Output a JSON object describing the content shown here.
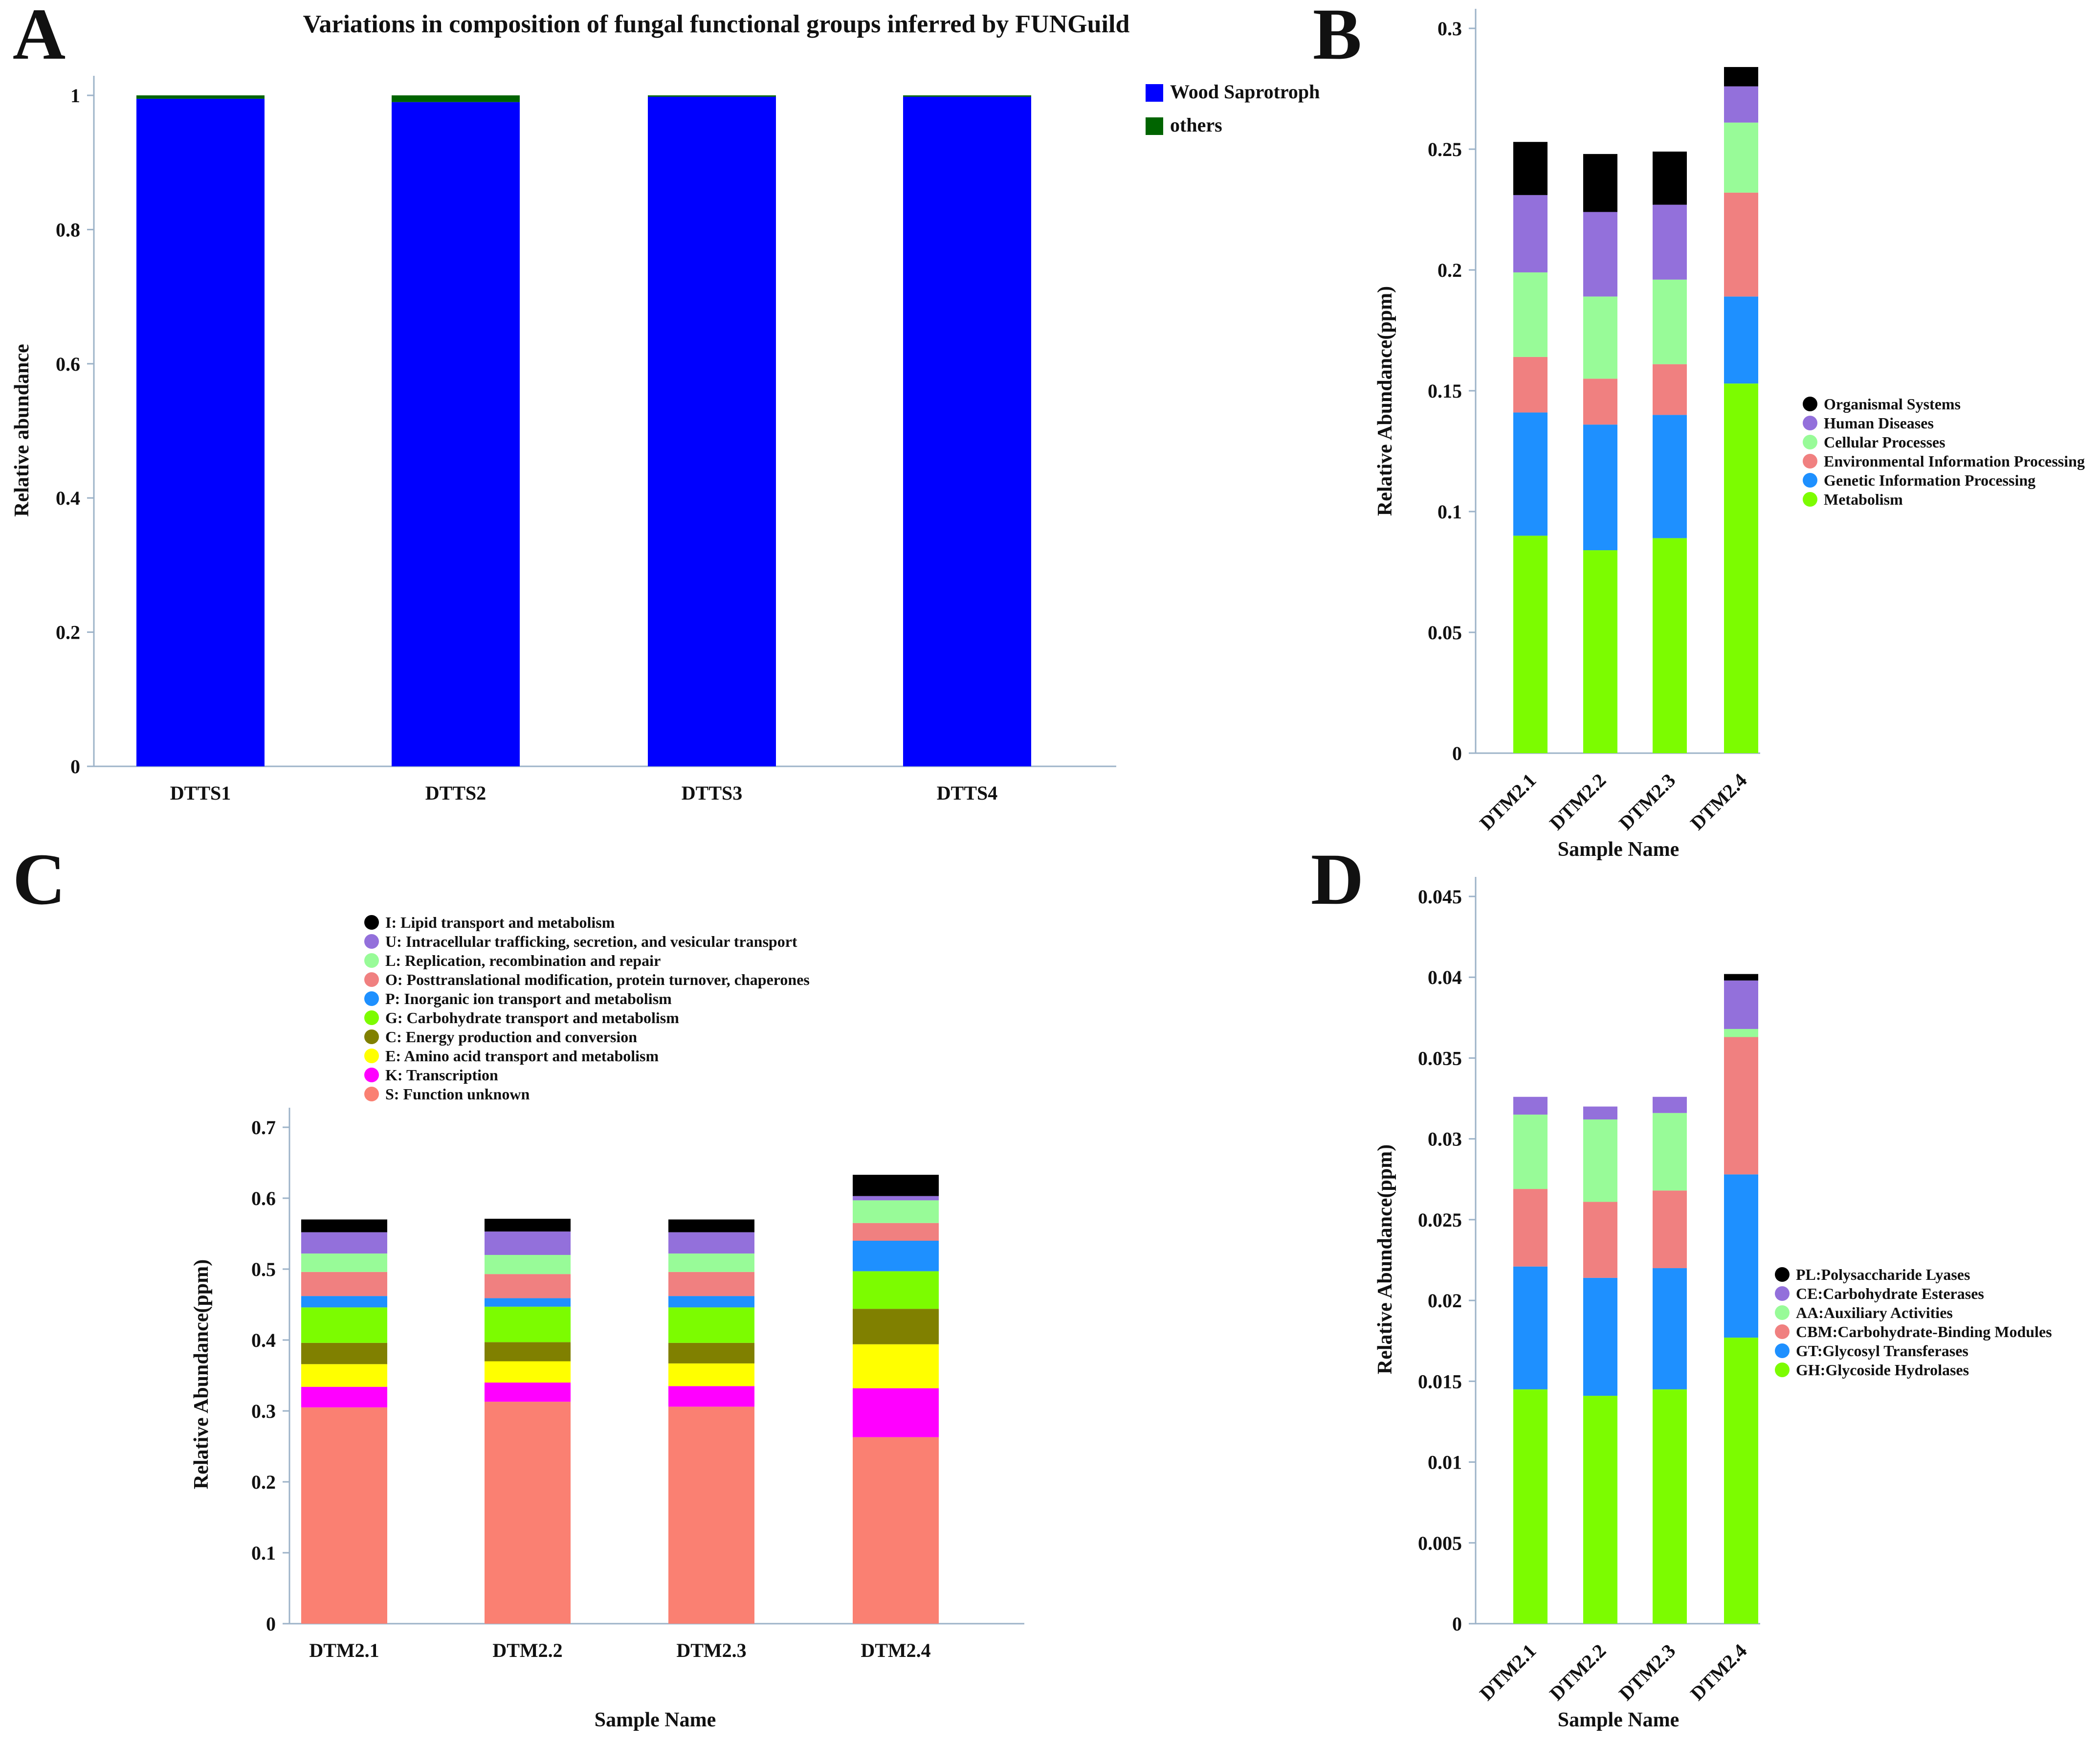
{
  "chart_data": [
    {
      "panel": "A",
      "type": "bar",
      "stacked": true,
      "title": "Variations in composition of fungal functional groups inferred by FUNGuild",
      "xlabel": "",
      "ylabel": "Relative abundance",
      "ylim": [
        0,
        1
      ],
      "yticks": [
        0,
        0.2,
        0.4,
        0.6,
        0.8,
        1
      ],
      "ytick_labels": [
        "0",
        "0.2",
        "0.4",
        "0.6",
        "0.8",
        "1"
      ],
      "categories": [
        "DTTS1",
        "DTTS2",
        "DTTS3",
        "DTTS4"
      ],
      "series": [
        {
          "name": "Wood Saprotroph",
          "color": "#0000ff",
          "values": [
            0.995,
            0.99,
            0.998,
            0.998
          ]
        },
        {
          "name": "others",
          "color": "#006400",
          "values": [
            0.005,
            0.01,
            0.002,
            0.002
          ]
        }
      ],
      "legend_position": "right"
    },
    {
      "panel": "B",
      "type": "bar",
      "stacked": true,
      "title": "",
      "xlabel": "Sample Name",
      "ylabel": "Relative Abundance(ppm)",
      "ylim": [
        0,
        0.3
      ],
      "yticks": [
        0,
        0.05,
        0.1,
        0.15,
        0.2,
        0.25,
        0.3
      ],
      "ytick_labels": [
        "0",
        "0.05",
        "0.1",
        "0.15",
        "0.2",
        "0.25",
        "0.3"
      ],
      "categories": [
        "DTM2.1",
        "DTM2.2",
        "DTM2.3",
        "DTM2.4"
      ],
      "series": [
        {
          "name": "Metabolism",
          "color": "#7cfc00",
          "values": [
            0.09,
            0.084,
            0.089,
            0.153
          ]
        },
        {
          "name": "Genetic Information Processing",
          "color": "#1e90ff",
          "values": [
            0.051,
            0.052,
            0.051,
            0.036
          ]
        },
        {
          "name": "Environmental Information Processing",
          "color": "#f08080",
          "values": [
            0.023,
            0.019,
            0.021,
            0.043
          ]
        },
        {
          "name": "Cellular Processes",
          "color": "#98fb98",
          "values": [
            0.035,
            0.034,
            0.035,
            0.029
          ]
        },
        {
          "name": "Human Diseases",
          "color": "#9370db",
          "values": [
            0.032,
            0.035,
            0.031,
            0.015
          ]
        },
        {
          "name": "Organismal Systems",
          "color": "#000000",
          "values": [
            0.022,
            0.024,
            0.022,
            0.008
          ]
        }
      ],
      "legend_order": [
        "Organismal Systems",
        "Human Diseases",
        "Cellular Processes",
        "Environmental Information Processing",
        "Genetic Information Processing",
        "Metabolism"
      ],
      "legend_position": "right"
    },
    {
      "panel": "C",
      "type": "bar",
      "stacked": true,
      "title": "",
      "xlabel": "Sample Name",
      "ylabel": "Relative Abundance(ppm)",
      "ylim": [
        0,
        0.7
      ],
      "yticks": [
        0,
        0.1,
        0.2,
        0.3,
        0.4,
        0.5,
        0.6,
        0.7
      ],
      "ytick_labels": [
        "0",
        "0.1",
        "0.2",
        "0.3",
        "0.4",
        "0.5",
        "0.6",
        "0.7"
      ],
      "categories": [
        "DTM2.1",
        "DTM2.2",
        "DTM2.3",
        "DTM2.4"
      ],
      "series": [
        {
          "name": "S: Function unknown",
          "color": "#fa8072",
          "values": [
            0.305,
            0.313,
            0.306,
            0.263
          ]
        },
        {
          "name": "K: Transcription",
          "color": "#ff00ff",
          "values": [
            0.029,
            0.027,
            0.029,
            0.069
          ]
        },
        {
          "name": "E: Amino acid transport and metabolism",
          "color": "#ffff00",
          "values": [
            0.032,
            0.03,
            0.032,
            0.062
          ]
        },
        {
          "name": "C: Energy production and conversion",
          "color": "#808000",
          "values": [
            0.03,
            0.027,
            0.029,
            0.05
          ]
        },
        {
          "name": "G: Carbohydrate transport and metabolism",
          "color": "#7cfc00",
          "values": [
            0.05,
            0.05,
            0.05,
            0.053
          ]
        },
        {
          "name": "P: Inorganic ion transport and metabolism",
          "color": "#1e90ff",
          "values": [
            0.016,
            0.012,
            0.016,
            0.043
          ]
        },
        {
          "name": "O: Posttranslational modification, protein turnover, chaperones",
          "color": "#f08080",
          "values": [
            0.034,
            0.034,
            0.034,
            0.025
          ]
        },
        {
          "name": "L: Replication, recombination and repair",
          "color": "#98fb98",
          "values": [
            0.026,
            0.027,
            0.026,
            0.032
          ]
        },
        {
          "name": "U: Intracellular trafficking, secretion, and vesicular transport",
          "color": "#9370db",
          "values": [
            0.03,
            0.033,
            0.03,
            0.006
          ]
        },
        {
          "name": "I: Lipid transport and metabolism",
          "color": "#000000",
          "values": [
            0.018,
            0.018,
            0.018,
            0.03
          ]
        }
      ],
      "legend_order": [
        "I: Lipid transport and metabolism",
        "U: Intracellular trafficking, secretion, and vesicular transport",
        "L: Replication, recombination and repair",
        "O: Posttranslational modification, protein turnover, chaperones",
        "P: Inorganic ion transport and metabolism",
        "G: Carbohydrate transport and metabolism",
        "C: Energy production and conversion",
        "E: Amino acid transport and metabolism",
        "K: Transcription",
        "S: Function unknown"
      ],
      "legend_position": "top"
    },
    {
      "panel": "D",
      "type": "bar",
      "stacked": true,
      "title": "",
      "xlabel": "Sample Name",
      "ylabel": "Relative Abundance(ppm)",
      "ylim": [
        0,
        0.045
      ],
      "yticks": [
        0,
        0.005,
        0.01,
        0.015,
        0.02,
        0.025,
        0.03,
        0.035,
        0.04,
        0.045
      ],
      "ytick_labels": [
        "0",
        "0.005",
        "0.01",
        "0.015",
        "0.02",
        "0.025",
        "0.03",
        "0.035",
        "0.04",
        "0.045"
      ],
      "categories": [
        "DTM2.1",
        "DTM2.2",
        "DTM2.3",
        "DTM2.4"
      ],
      "series": [
        {
          "name": "GH:Glycoside Hydrolases",
          "color": "#7cfc00",
          "values": [
            0.0145,
            0.0141,
            0.0145,
            0.0177
          ]
        },
        {
          "name": "GT:Glycosyl Transferases",
          "color": "#1e90ff",
          "values": [
            0.0076,
            0.0073,
            0.0075,
            0.0101
          ]
        },
        {
          "name": "CBM:Carbohydrate-Binding Modules",
          "color": "#f08080",
          "values": [
            0.0048,
            0.0047,
            0.0048,
            0.0085
          ]
        },
        {
          "name": "AA:Auxiliary Activities",
          "color": "#98fb98",
          "values": [
            0.0046,
            0.0051,
            0.0048,
            0.0005
          ]
        },
        {
          "name": "CE:Carbohydrate Esterases",
          "color": "#9370db",
          "values": [
            0.0011,
            0.0008,
            0.001,
            0.003
          ]
        },
        {
          "name": "PL:Polysaccharide Lyases",
          "color": "#000000",
          "values": [
            0.0,
            0.0,
            0.0,
            0.0004
          ]
        }
      ],
      "legend_order": [
        "PL:Polysaccharide Lyases",
        "CE:Carbohydrate Esterases",
        "AA:Auxiliary Activities",
        "CBM:Carbohydrate-Binding Modules",
        "GT:Glycosyl Transferases",
        "GH:Glycoside Hydrolases"
      ],
      "legend_position": "right"
    }
  ]
}
